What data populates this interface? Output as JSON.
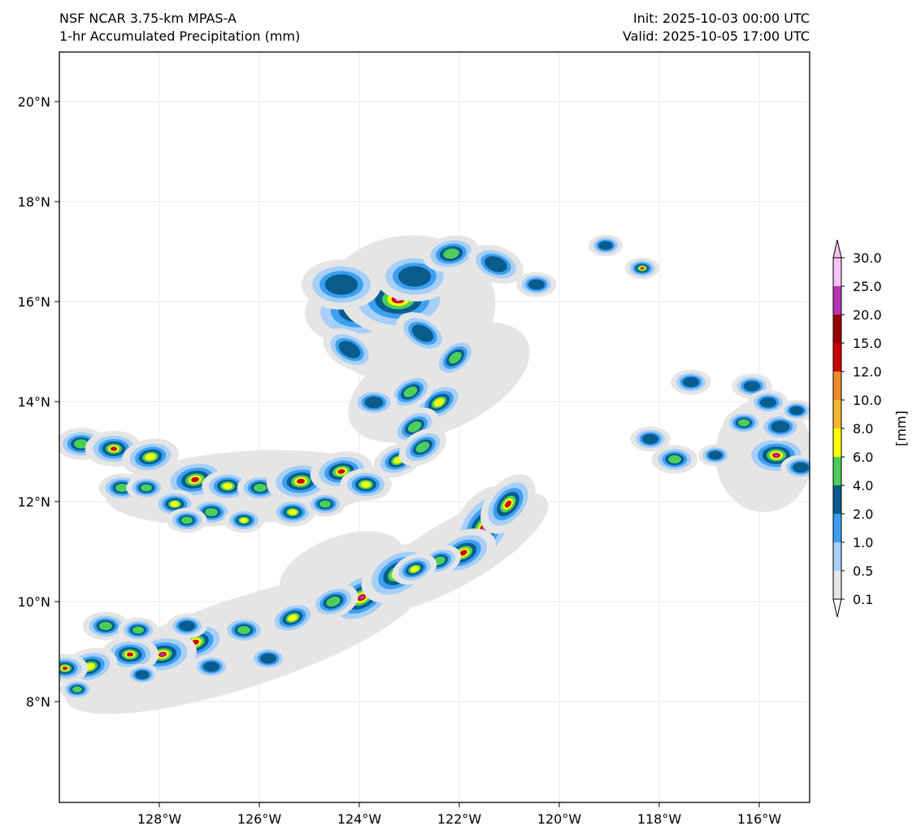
{
  "header": {
    "model": "NSF NCAR 3.75-km MPAS-A",
    "field": "1-hr Accumulated Precipitation (mm)",
    "init": "Init: 2025-10-03 00:00 UTC",
    "valid": "Valid: 2025-10-05 17:00 UTC"
  },
  "axes": {
    "lon_labels": [
      "128°W",
      "126°W",
      "124°W",
      "122°W",
      "120°W",
      "118°W",
      "116°W"
    ],
    "lat_labels": [
      "20°N",
      "18°N",
      "16°N",
      "14°N",
      "12°N",
      "10°N",
      "8°N"
    ]
  },
  "colorbar": {
    "unit_label": "[mm]",
    "levels": [
      "0.1",
      "0.5",
      "1.0",
      "2.0",
      "4.0",
      "6.0",
      "8.0",
      "10.0",
      "12.0",
      "15.0",
      "20.0",
      "25.0",
      "30.0"
    ],
    "colors": [
      "#e5e5e5",
      "#a6cef7",
      "#3ba0f2",
      "#0a5c8c",
      "#4ccf5a",
      "#ffff00",
      "#f5b730",
      "#ed8a2a",
      "#cc0000",
      "#990000",
      "#b833b8",
      "#f7c2f2"
    ]
  },
  "palette": {
    "light": "#e5e5e5",
    "pale_blue": "#a6cef7",
    "blue": "#3ba0f2",
    "navy": "#0a5c8c",
    "green": "#4ccf5a",
    "yellow": "#ffff00",
    "red": "#cc0000",
    "magenta": "#b833b8",
    "pink": "#f7c2f2"
  }
}
